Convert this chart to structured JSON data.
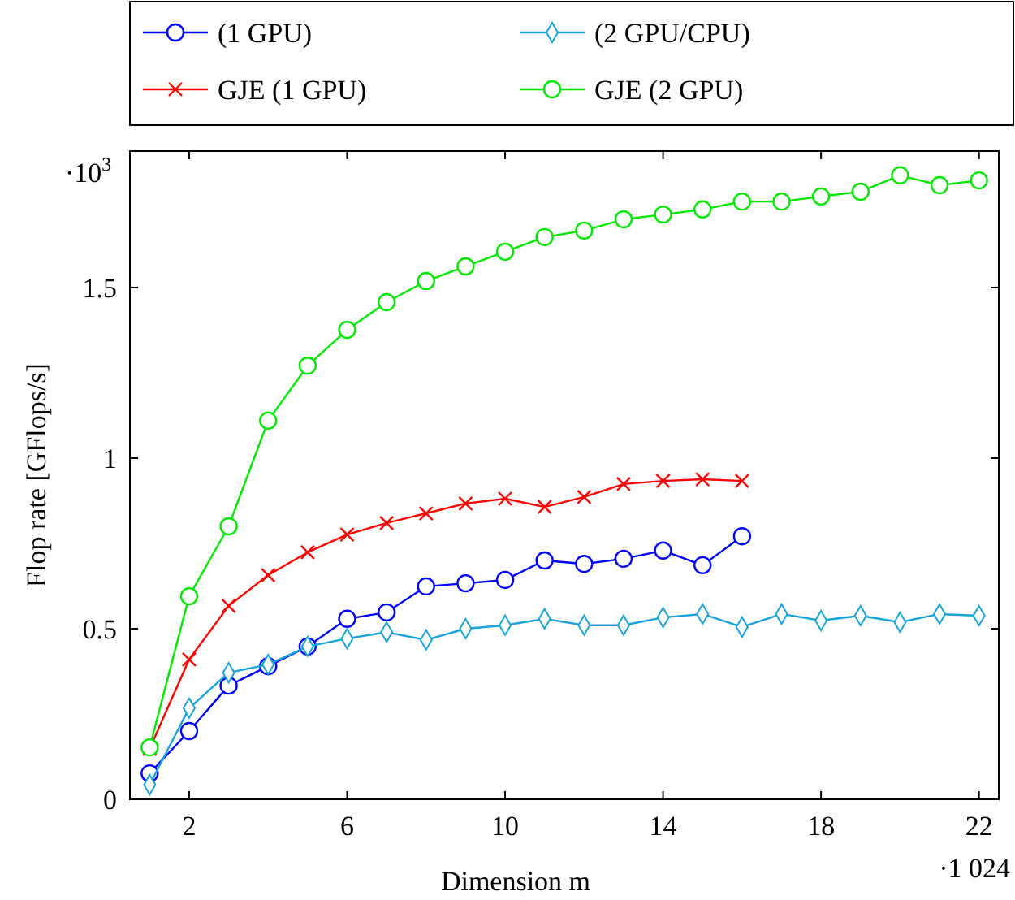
{
  "chart_data": {
    "type": "line",
    "xlabel": "Dimension m",
    "ylabel": "Flop rate [GFlops/s]",
    "x": [
      1,
      2,
      3,
      4,
      5,
      6,
      7,
      8,
      9,
      10,
      11,
      12,
      13,
      14,
      15,
      16,
      17,
      18,
      19,
      20,
      21,
      22
    ],
    "xlim": [
      0.5,
      22.5
    ],
    "ylim": [
      0,
      1.9
    ],
    "xticks": [
      2,
      6,
      10,
      14,
      18,
      22
    ],
    "yticks": [
      0,
      0.5,
      1,
      1.5
    ],
    "annotations": [
      "·10$^{3}$",
      "·1 024"
    ],
    "legend": "top",
    "grid": false,
    "line_style": "solid",
    "series": [
      {
        "name": "(1 GPU)",
        "color": "#0000ff",
        "marker": "circle",
        "x": [
          1,
          2,
          3,
          4,
          5,
          6,
          7,
          8,
          9,
          10,
          11,
          12,
          13,
          14,
          15,
          16
        ],
        "values": [
          0.076,
          0.2,
          0.333,
          0.39,
          0.448,
          0.529,
          0.548,
          0.624,
          0.633,
          0.643,
          0.7,
          0.69,
          0.705,
          0.729,
          0.686,
          0.771
        ]
      },
      {
        "name": "(2 GPU/CPU)",
        "color": "#1aa3d6",
        "marker": "diamond",
        "values": [
          0.043,
          0.267,
          0.371,
          0.395,
          0.448,
          0.471,
          0.49,
          0.467,
          0.5,
          0.51,
          0.529,
          0.51,
          0.51,
          0.533,
          0.543,
          0.505,
          0.543,
          0.524,
          0.538,
          0.519,
          0.543,
          0.538
        ]
      },
      {
        "name": "GJE (1 GPU)",
        "color": "#ff0000",
        "marker": "cross",
        "x": [
          1,
          2,
          3,
          4,
          5,
          6,
          7,
          8,
          9,
          10,
          11,
          12,
          13,
          14,
          15,
          16
        ],
        "values": [
          0.148,
          0.41,
          0.567,
          0.657,
          0.724,
          0.776,
          0.81,
          0.838,
          0.867,
          0.881,
          0.857,
          0.886,
          0.924,
          0.933,
          0.938,
          0.933
        ]
      },
      {
        "name": "GJE (2 GPU)",
        "color": "#00e600",
        "marker": "circle",
        "values": [
          0.152,
          0.595,
          0.8,
          1.11,
          1.271,
          1.376,
          1.457,
          1.519,
          1.562,
          1.605,
          1.648,
          1.667,
          1.7,
          1.714,
          1.729,
          1.752,
          1.752,
          1.767,
          1.781,
          1.829,
          1.8,
          1.814
        ]
      }
    ]
  }
}
